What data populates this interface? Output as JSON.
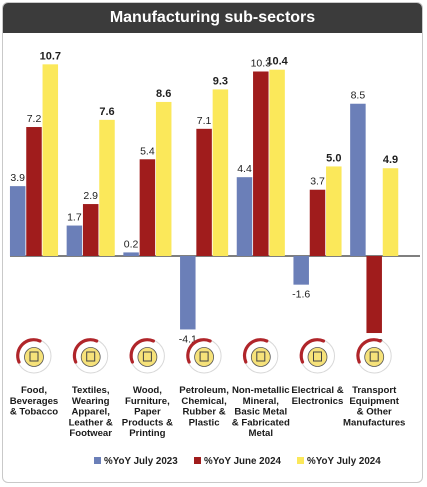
{
  "chart_data": {
    "type": "bar",
    "title": "Manufacturing sub-sectors",
    "categories": [
      [
        "Food,",
        "Beverages",
        "& Tobacco"
      ],
      [
        "Textiles,",
        "Wearing",
        "Apparel,",
        "Leather &",
        "Footwear"
      ],
      [
        "Wood,",
        "Furniture,",
        "Paper",
        "Products &",
        "Printing"
      ],
      [
        "Petroleum,",
        "Chemical,",
        "Rubber &",
        "Plastic"
      ],
      [
        "Non-metallic",
        "Mineral,",
        "Basic Metal",
        "& Fabricated",
        "Metal"
      ],
      [
        "Electrical &",
        "Electronics"
      ],
      [
        "Transport",
        "Equipment",
        "& Other",
        "Manufactures"
      ]
    ],
    "category_icons": [
      "food-icon",
      "apparel-icon",
      "furniture-icon",
      "chemical-icon",
      "metal-icon",
      "electronics-icon",
      "transport-icon"
    ],
    "series": [
      {
        "name": "%YoY July 2023",
        "color": "#6b7fb8",
        "values": [
          3.9,
          1.7,
          0.2,
          -4.1,
          4.4,
          -1.6,
          8.5
        ],
        "labels": [
          "3.9",
          "1.7",
          "0.2",
          "-4.1",
          "4.4",
          "-1.6",
          "8.5"
        ],
        "bold": false
      },
      {
        "name": "%YoY June 2024",
        "color": "#a01c1c",
        "values": [
          7.2,
          2.9,
          5.4,
          7.1,
          10.3,
          3.7,
          -4.3
        ],
        "labels": [
          "7.2",
          "2.9",
          "5.4",
          "7.1",
          "10.3",
          "3.7",
          "-4.3"
        ],
        "bold": false
      },
      {
        "name": "%YoY July 2024",
        "color": "#fbe85a",
        "values": [
          10.7,
          7.6,
          8.6,
          9.3,
          10.4,
          5.0,
          4.9
        ],
        "labels": [
          "10.7",
          "7.6",
          "8.6",
          "9.3",
          "10.4",
          "5.0",
          "4.9"
        ],
        "bold": true
      }
    ],
    "ylim": [
      -5.2,
      11.5
    ],
    "grid": false,
    "legend_position": "bottom"
  },
  "colors": {
    "header_bg": "#3b3b3b",
    "icon_ring": "#b0252a",
    "icon_fill": "#f6e27a"
  }
}
